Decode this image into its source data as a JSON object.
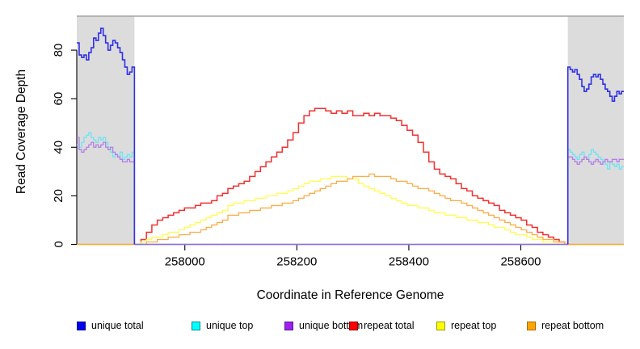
{
  "chart_data": {
    "type": "line",
    "title": "",
    "xlabel": "Coordinate in Reference Genome",
    "ylabel": "Read Coverage Depth",
    "xlim": [
      257807,
      258784
    ],
    "ylim": [
      0,
      94
    ],
    "xticks": [
      258000,
      258200,
      258400,
      258600
    ],
    "yticks": [
      0,
      20,
      40,
      60,
      80
    ],
    "grid": false,
    "legend_position": "bottom",
    "shaded_color": "#DCDCDC",
    "frame_color": "#A3A3A3",
    "shaded_regions": [
      {
        "x0": 257807,
        "x1": 257910
      },
      {
        "x0": 258684,
        "x1": 258784
      }
    ],
    "baselines": [
      {
        "color": "#FFA524",
        "x0": 257807,
        "x1": 258784,
        "y": 0
      },
      {
        "color": "#7B74F4",
        "x0": 257910,
        "x1": 258684,
        "y": 0
      }
    ],
    "series": [
      {
        "id": "repeat_total",
        "name": "repeat total",
        "group": "repeat",
        "color": "#F23030",
        "width": 1.5,
        "regions": [
          {
            "x0": 257912,
            "x1": 258688,
            "values": [
              0,
              2,
              5,
              8,
              10,
              11,
              12,
              13,
              14,
              15,
              15,
              16,
              17,
              17,
              18,
              20,
              21,
              23,
              24,
              25,
              26,
              28,
              30,
              32,
              34,
              36,
              38,
              40,
              43,
              46,
              50,
              53,
              55,
              56,
              56,
              55,
              54,
              55,
              54,
              55,
              53,
              53,
              54,
              53,
              54,
              53,
              53,
              52,
              51,
              49,
              47,
              45,
              42,
              38,
              34,
              31,
              29,
              28,
              27,
              25,
              23,
              22,
              20,
              19,
              18,
              17,
              16,
              14,
              13,
              12,
              11,
              10,
              8,
              7,
              5,
              4,
              3,
              2,
              1,
              0
            ]
          }
        ]
      },
      {
        "id": "repeat_top",
        "name": "repeat top",
        "group": "repeat",
        "color": "#FFFC50",
        "width": 1.3,
        "regions": [
          {
            "x0": 257912,
            "x1": 258688,
            "values": [
              0,
              1,
              2,
              3,
              3,
              4,
              5,
              5,
              6,
              7,
              8,
              9,
              10,
              11,
              12,
              13,
              14,
              16,
              17,
              17,
              18,
              18,
              19,
              19,
              20,
              20,
              21,
              21,
              22,
              23,
              24,
              25,
              26,
              26,
              27,
              27,
              28,
              28,
              28,
              27,
              27,
              25,
              24,
              23,
              22,
              21,
              20,
              19,
              18,
              17,
              16,
              16,
              15,
              15,
              14,
              13,
              13,
              12,
              12,
              11,
              11,
              10,
              10,
              9,
              9,
              8,
              7,
              7,
              6,
              5,
              4,
              4,
              3,
              2,
              2,
              1,
              1,
              1,
              0,
              0
            ]
          }
        ]
      },
      {
        "id": "repeat_bottom",
        "name": "repeat bottom",
        "group": "repeat",
        "color": "#FFAC47",
        "width": 1.3,
        "regions": [
          {
            "x0": 257912,
            "x1": 258688,
            "values": [
              0,
              0,
              1,
              1,
              2,
              2,
              3,
              3,
              4,
              4,
              5,
              5,
              6,
              7,
              8,
              9,
              10,
              12,
              12,
              13,
              13,
              14,
              14,
              15,
              15,
              16,
              16,
              17,
              17,
              18,
              19,
              20,
              21,
              22,
              23,
              24,
              25,
              26,
              26,
              27,
              28,
              28,
              28,
              29,
              28,
              28,
              28,
              27,
              26,
              26,
              25,
              24,
              23,
              23,
              22,
              21,
              20,
              19,
              18,
              18,
              17,
              16,
              15,
              14,
              13,
              12,
              11,
              10,
              9,
              8,
              7,
              6,
              5,
              4,
              3,
              2,
              2,
              1,
              1,
              0
            ]
          }
        ]
      },
      {
        "id": "unique_top",
        "name": "unique top",
        "group": "unique",
        "color": "#6FE3F2",
        "width": 1.3,
        "regions": [
          {
            "x0": 257807,
            "x1": 257910,
            "drop_end": true,
            "values": [
              41,
              40,
              42,
              44,
              45,
              46,
              44,
              43,
              42,
              44,
              43,
              44,
              42,
              40,
              38,
              36,
              37,
              36,
              38,
              35,
              36,
              37,
              36,
              38
            ]
          },
          {
            "x0": 258684,
            "x1": 258784,
            "rise_start": true,
            "values": [
              39,
              38,
              37,
              36,
              35,
              37,
              38,
              36,
              35,
              37,
              39,
              38,
              37,
              36,
              35,
              34,
              33,
              31,
              34,
              33,
              32,
              33,
              31,
              32
            ]
          }
        ]
      },
      {
        "id": "unique_bottom",
        "name": "unique bottom",
        "group": "unique",
        "color": "#B27FE8",
        "width": 1.3,
        "regions": [
          {
            "x0": 257807,
            "x1": 257910,
            "drop_end": true,
            "values": [
              44,
              39,
              38,
              39,
              40,
              41,
              42,
              40,
              41,
              40,
              41,
              42,
              40,
              39,
              40,
              38,
              37,
              36,
              35,
              34,
              34,
              35,
              34,
              34
            ]
          },
          {
            "x0": 258684,
            "x1": 258784,
            "rise_start": true,
            "values": [
              36,
              36,
              35,
              34,
              33,
              34,
              35,
              36,
              35,
              34,
              33,
              34,
              35,
              34,
              33,
              34,
              35,
              34,
              34,
              35,
              35,
              34,
              35,
              35
            ]
          }
        ]
      },
      {
        "id": "unique_total",
        "name": "unique total",
        "group": "unique",
        "color": "#2F2FE8",
        "width": 1.6,
        "regions": [
          {
            "x0": 257807,
            "x1": 257910,
            "drop_end": true,
            "values": [
              83,
              78,
              77,
              78,
              76,
              79,
              81,
              85,
              84,
              87,
              89,
              86,
              83,
              80,
              82,
              84,
              83,
              81,
              79,
              76,
              73,
              70,
              71,
              73
            ]
          },
          {
            "x0": 258684,
            "x1": 258784,
            "rise_start": true,
            "values": [
              73,
              72,
              71,
              72,
              70,
              68,
              65,
              63,
              64,
              66,
              69,
              70,
              69,
              70,
              68,
              66,
              64,
              63,
              61,
              59,
              61,
              63,
              62,
              63
            ]
          }
        ]
      }
    ]
  },
  "legend": {
    "items": [
      {
        "label": "unique total",
        "fill": "#0000EE",
        "border": "#00008B"
      },
      {
        "label": "unique top",
        "fill": "#00FFFF",
        "border": "#008B8B"
      },
      {
        "label": "unique bottom",
        "fill": "#A020F0",
        "border": "#551A8B"
      },
      {
        "label": "repeat total",
        "fill": "#FF0000",
        "border": "#8B0000"
      },
      {
        "label": "repeat top",
        "fill": "#FFFF00",
        "border": "#9A9A00"
      },
      {
        "label": "repeat bottom",
        "fill": "#FFA500",
        "border": "#A66A00"
      }
    ]
  }
}
